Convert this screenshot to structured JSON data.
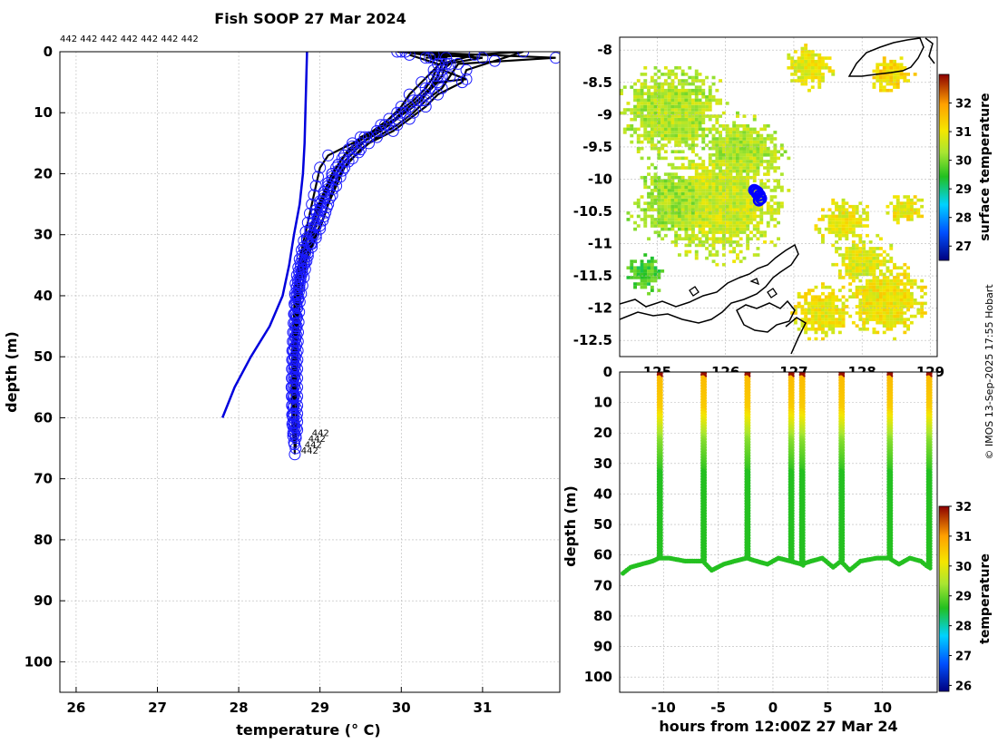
{
  "chart_data": [
    {
      "type": "line",
      "title": "Fish SOOP 27 Mar 2024",
      "xlabel": "temperature (° C)",
      "ylabel": "depth (m)",
      "xlim": [
        25.8,
        31.95
      ],
      "ylim": [
        105,
        0
      ],
      "x_ticks": [
        26,
        27,
        28,
        29,
        30,
        31
      ],
      "y_ticks": [
        0,
        10,
        20,
        30,
        40,
        50,
        60,
        70,
        80,
        90,
        100
      ],
      "profile_ids": [
        "442",
        "442",
        "442",
        "442",
        "442",
        "442",
        "442"
      ],
      "bottom_labels": [
        "442",
        "442",
        "442",
        "442"
      ],
      "climatology": {
        "name": "climatology",
        "color": "#0000dd",
        "points": [
          [
            28.84,
            0
          ],
          [
            28.83,
            5
          ],
          [
            28.82,
            10
          ],
          [
            28.81,
            15
          ],
          [
            28.79,
            20
          ],
          [
            28.75,
            25
          ],
          [
            28.68,
            30
          ],
          [
            28.62,
            35
          ],
          [
            28.54,
            40
          ],
          [
            28.38,
            45
          ],
          [
            28.15,
            50
          ],
          [
            27.95,
            55
          ],
          [
            27.8,
            60
          ]
        ]
      },
      "profiles": [
        {
          "name": "profile-1",
          "points": [
            [
              29.95,
              0
            ],
            [
              30.9,
              0.5
            ],
            [
              30.5,
              2
            ],
            [
              30.45,
              4
            ],
            [
              30.35,
              6
            ],
            [
              30.25,
              8
            ],
            [
              30.05,
              10
            ],
            [
              29.8,
              12
            ],
            [
              29.5,
              14
            ],
            [
              29.3,
              17
            ],
            [
              29.15,
              20
            ],
            [
              29.05,
              23
            ],
            [
              29.0,
              26
            ],
            [
              28.92,
              30
            ],
            [
              28.85,
              33
            ],
            [
              28.78,
              36
            ],
            [
              28.72,
              40
            ],
            [
              28.7,
              45
            ],
            [
              28.69,
              50
            ],
            [
              28.68,
              55
            ],
            [
              28.67,
              60
            ],
            [
              28.7,
              63
            ]
          ]
        },
        {
          "name": "profile-2",
          "points": [
            [
              30.05,
              0
            ],
            [
              31.9,
              1
            ],
            [
              30.7,
              2
            ],
            [
              30.6,
              4
            ],
            [
              30.5,
              6
            ],
            [
              30.3,
              8
            ],
            [
              30.15,
              10
            ],
            [
              29.95,
              12
            ],
            [
              29.7,
              14
            ],
            [
              29.5,
              16
            ],
            [
              29.3,
              19
            ],
            [
              29.2,
              22
            ],
            [
              29.1,
              25
            ],
            [
              29.0,
              29
            ],
            [
              28.9,
              32
            ],
            [
              28.8,
              35
            ],
            [
              28.75,
              38
            ],
            [
              28.72,
              42
            ],
            [
              28.71,
              48
            ],
            [
              28.7,
              54
            ],
            [
              28.71,
              60
            ],
            [
              28.7,
              65
            ]
          ]
        },
        {
          "name": "profile-3",
          "points": [
            [
              30.3,
              1
            ],
            [
              31.5,
              0
            ],
            [
              30.8,
              3
            ],
            [
              30.75,
              5
            ],
            [
              30.45,
              7
            ],
            [
              30.3,
              9
            ],
            [
              30.1,
              11
            ],
            [
              29.9,
              13
            ],
            [
              29.6,
              15
            ],
            [
              29.35,
              18
            ],
            [
              29.2,
              21
            ],
            [
              29.12,
              24
            ],
            [
              29.05,
              27
            ],
            [
              28.95,
              30
            ],
            [
              28.85,
              33
            ],
            [
              28.8,
              37
            ],
            [
              28.75,
              41
            ],
            [
              28.73,
              46
            ],
            [
              28.72,
              52
            ],
            [
              28.72,
              58
            ],
            [
              28.72,
              62
            ]
          ]
        },
        {
          "name": "profile-4",
          "points": [
            [
              30.0,
              0
            ],
            [
              30.55,
              1
            ],
            [
              30.4,
              3
            ],
            [
              30.25,
              5
            ],
            [
              30.1,
              7
            ],
            [
              30.0,
              9
            ],
            [
              29.85,
              11
            ],
            [
              29.7,
              13
            ],
            [
              29.4,
              15
            ],
            [
              29.1,
              17
            ],
            [
              29.0,
              19
            ],
            [
              28.95,
              22
            ],
            [
              28.9,
              25
            ],
            [
              28.85,
              28
            ],
            [
              28.8,
              31
            ],
            [
              28.75,
              34
            ],
            [
              28.7,
              38
            ],
            [
              28.68,
              43
            ],
            [
              28.66,
              49
            ],
            [
              28.65,
              55
            ],
            [
              28.66,
              61
            ],
            [
              28.68,
              64
            ]
          ]
        },
        {
          "name": "profile-5",
          "points": [
            [
              30.4,
              0.5
            ],
            [
              31.0,
              1
            ],
            [
              30.55,
              2
            ],
            [
              30.5,
              4
            ],
            [
              30.35,
              6
            ],
            [
              30.2,
              8
            ],
            [
              30.0,
              10
            ],
            [
              29.85,
              12
            ],
            [
              29.6,
              14
            ],
            [
              29.45,
              16
            ],
            [
              29.3,
              18
            ],
            [
              29.15,
              21
            ],
            [
              29.05,
              24
            ],
            [
              28.98,
              27
            ],
            [
              28.9,
              30
            ],
            [
              28.82,
              33
            ],
            [
              28.76,
              37
            ],
            [
              28.72,
              42
            ],
            [
              28.7,
              47
            ],
            [
              28.69,
              53
            ],
            [
              28.68,
              58
            ],
            [
              28.68,
              62
            ]
          ]
        },
        {
          "name": "profile-6",
          "points": [
            [
              30.1,
              0.5
            ],
            [
              30.45,
              2
            ],
            [
              30.4,
              4
            ],
            [
              30.3,
              6
            ],
            [
              30.15,
              8
            ],
            [
              29.95,
              10
            ],
            [
              29.75,
              12
            ],
            [
              29.55,
              14
            ],
            [
              29.35,
              16
            ],
            [
              29.2,
              19
            ],
            [
              29.1,
              22
            ],
            [
              29.0,
              25
            ],
            [
              28.92,
              28
            ],
            [
              28.84,
              31
            ],
            [
              28.78,
              34
            ],
            [
              28.73,
              38
            ],
            [
              28.7,
              43
            ],
            [
              28.68,
              49
            ],
            [
              28.68,
              55
            ],
            [
              28.68,
              61
            ],
            [
              28.69,
              66
            ]
          ]
        },
        {
          "name": "profile-7",
          "points": [
            [
              30.35,
              1
            ],
            [
              30.6,
              2
            ],
            [
              30.5,
              3
            ],
            [
              30.8,
              4.5
            ],
            [
              30.45,
              5
            ],
            [
              30.3,
              7
            ],
            [
              30.1,
              9
            ],
            [
              29.95,
              11
            ],
            [
              29.75,
              13
            ],
            [
              29.5,
              15
            ],
            [
              29.3,
              17
            ],
            [
              29.15,
              20
            ],
            [
              29.05,
              23
            ],
            [
              28.95,
              26
            ],
            [
              28.88,
              29
            ],
            [
              28.8,
              32
            ],
            [
              28.74,
              36
            ],
            [
              28.7,
              40
            ],
            [
              28.67,
              46
            ],
            [
              28.66,
              52
            ],
            [
              28.66,
              58
            ],
            [
              28.67,
              63
            ]
          ]
        }
      ]
    },
    {
      "type": "heatmap",
      "xlabel": "",
      "ylabel": "",
      "xlim": [
        124.45,
        129.1
      ],
      "ylim": [
        -12.75,
        -7.8
      ],
      "x_ticks": [
        125,
        126,
        127,
        128,
        129
      ],
      "y_ticks": [
        -8,
        -8.5,
        -9,
        -9.5,
        -10,
        -10.5,
        -11,
        -11.5,
        -12,
        -12.5
      ],
      "colorbar_label": "surface temperature",
      "colorbar_ticks": [
        27,
        28,
        29,
        30,
        31,
        32
      ],
      "colorbar_range": [
        26.5,
        33
      ],
      "vessel_track": [
        [
          126.42,
          -10.17
        ],
        [
          126.47,
          -10.2
        ],
        [
          126.5,
          -10.25
        ],
        [
          126.52,
          -10.3
        ],
        [
          126.49,
          -10.33
        ],
        [
          126.46,
          -10.22
        ],
        [
          126.44,
          -10.18
        ]
      ],
      "vessel_color": "#0000ff"
    },
    {
      "type": "scatter",
      "xlabel": "hours from 12:00Z 27 Mar 24",
      "ylabel": "depth (m)",
      "xlim": [
        -14,
        15
      ],
      "ylim": [
        105,
        0
      ],
      "x_ticks": [
        -10,
        -5,
        0,
        5,
        10
      ],
      "y_ticks": [
        0,
        10,
        20,
        30,
        40,
        50,
        60,
        70,
        80,
        90,
        100
      ],
      "colorbar_label": "temperature",
      "colorbar_ticks": [
        26,
        27,
        28,
        29,
        30,
        31,
        32
      ],
      "colorbar_range": [
        25.8,
        32
      ],
      "profile_hours": [
        -10.4,
        -6.4,
        -2.4,
        1.6,
        2.6,
        6.2,
        10.6,
        14.2
      ],
      "bottom_track": [
        [
          -13.7,
          66
        ],
        [
          -13,
          64
        ],
        [
          -12,
          63
        ],
        [
          -11,
          62
        ],
        [
          -10.4,
          61
        ],
        [
          -9.5,
          61
        ],
        [
          -8,
          62
        ],
        [
          -7,
          62
        ],
        [
          -6.4,
          62
        ],
        [
          -5.6,
          65
        ],
        [
          -4.5,
          63
        ],
        [
          -3.5,
          62
        ],
        [
          -2.4,
          61
        ],
        [
          -1.5,
          62
        ],
        [
          -0.5,
          63
        ],
        [
          0.5,
          61
        ],
        [
          1.6,
          62
        ],
        [
          2.6,
          63
        ],
        [
          3.5,
          62
        ],
        [
          4.5,
          61
        ],
        [
          5.5,
          64
        ],
        [
          6.2,
          62
        ],
        [
          7,
          65
        ],
        [
          8,
          62
        ],
        [
          9.5,
          61
        ],
        [
          10.6,
          61
        ],
        [
          11.5,
          63
        ],
        [
          12.5,
          61
        ],
        [
          13.5,
          62
        ],
        [
          14.2,
          64
        ]
      ],
      "colors": {
        "surface_max": "#c81e00",
        "warm": "#ffa000",
        "yellow": "#f0e600",
        "green": "#1ec81e"
      }
    }
  ],
  "watermark": "© IMOS 13-Sep-2025 17:55 Hobart"
}
